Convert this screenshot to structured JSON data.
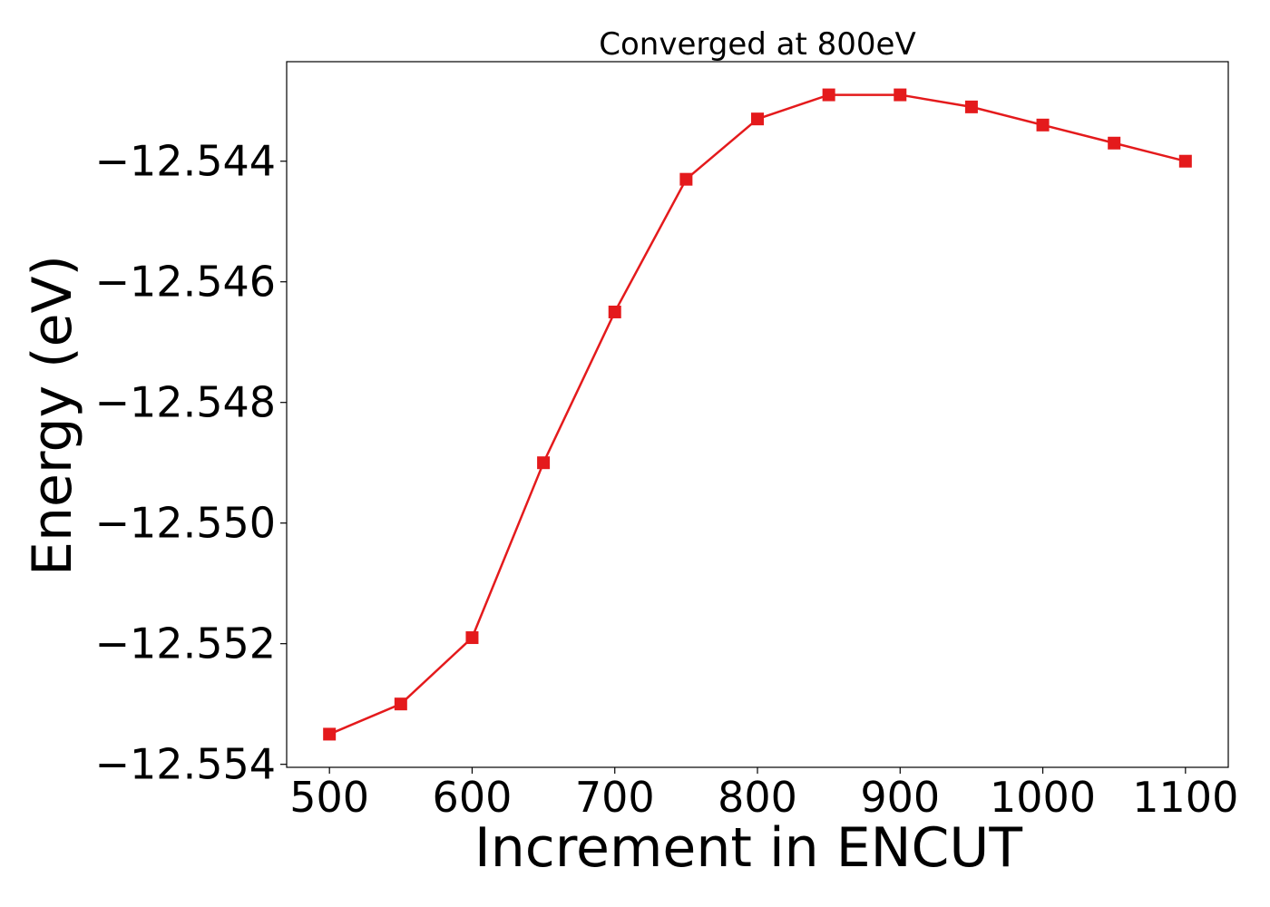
{
  "chart_data": {
    "type": "line",
    "title": "Converged at 800eV",
    "xlabel": "Increment in ENCUT",
    "ylabel": "Energy (eV)",
    "xlim": [
      470,
      1130
    ],
    "ylim": [
      -12.55405,
      -12.54235
    ],
    "xticks": [
      500,
      600,
      700,
      800,
      900,
      1000,
      1100
    ],
    "yticks": [
      -12.544,
      -12.546,
      -12.548,
      -12.55,
      -12.552,
      -12.554
    ],
    "ytick_labels": [
      "−12.544",
      "−12.546",
      "−12.548",
      "−12.550",
      "−12.552",
      "−12.554"
    ],
    "grid": false,
    "legend": "none",
    "series": [
      {
        "color": "#e41a1c",
        "marker": "square",
        "x": [
          500,
          550,
          600,
          650,
          700,
          750,
          800,
          850,
          900,
          950,
          1000,
          1050,
          1100
        ],
        "y": [
          -12.5535,
          -12.553,
          -12.5519,
          -12.549,
          -12.5465,
          -12.5443,
          -12.5433,
          -12.5429,
          -12.5429,
          -12.5431,
          -12.5434,
          -12.5437,
          -12.544
        ]
      }
    ]
  }
}
